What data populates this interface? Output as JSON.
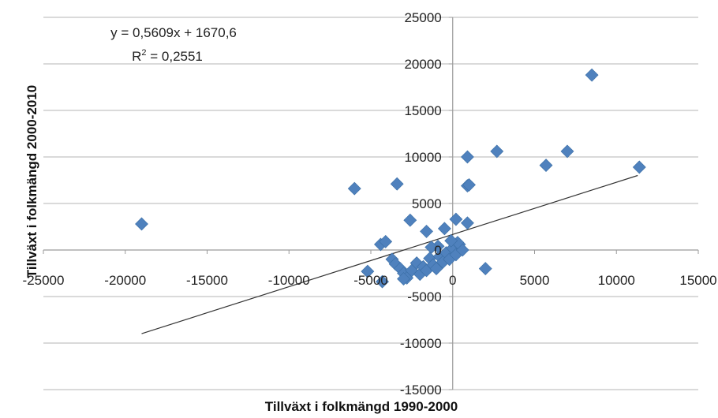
{
  "chart_data": {
    "type": "scatter",
    "title": "",
    "xlabel": "Tillväxt i folkmängd 1990-2000",
    "ylabel": "Tillväxt i folkmängd 2000-2010",
    "xlim": [
      -25000,
      15000
    ],
    "ylim": [
      -15000,
      25000
    ],
    "x_ticks": [
      -25000,
      -20000,
      -15000,
      -10000,
      -5000,
      0,
      5000,
      10000,
      15000
    ],
    "y_ticks": [
      -15000,
      -10000,
      -5000,
      0,
      5000,
      10000,
      15000,
      20000,
      25000
    ],
    "x_tick_labels": [
      "-25000",
      "-20000",
      "-15000",
      "-10000",
      "-5000",
      "0",
      "5000",
      "10000",
      "15000"
    ],
    "y_tick_labels": [
      "-15000",
      "-10000",
      "-5000",
      "0",
      "5000",
      "10000",
      "15000",
      "20000",
      "25000"
    ],
    "grid": true,
    "marker_color": "#4f81bd",
    "trendline": {
      "slope": 0.5609,
      "intercept": 1670.6,
      "x_range": [
        -19000,
        11300
      ]
    },
    "annotations": {
      "equation": "y = 0,5609x + 1670,6",
      "r2_prefix": "R",
      "r2_sup": "2",
      "r2_suffix": " = 0,2551"
    },
    "points": [
      {
        "x": -19000,
        "y": 2800
      },
      {
        "x": -6000,
        "y": 6600
      },
      {
        "x": -3400,
        "y": 7100
      },
      {
        "x": 8500,
        "y": 18800
      },
      {
        "x": 2700,
        "y": 10600
      },
      {
        "x": 7000,
        "y": 10600
      },
      {
        "x": 5700,
        "y": 9100
      },
      {
        "x": 11400,
        "y": 8900
      },
      {
        "x": 900,
        "y": 10000
      },
      {
        "x": 900,
        "y": 6900
      },
      {
        "x": 1000,
        "y": 7000
      },
      {
        "x": -2600,
        "y": 3200
      },
      {
        "x": -1600,
        "y": 2000
      },
      {
        "x": -500,
        "y": 2300
      },
      {
        "x": 200,
        "y": 3300
      },
      {
        "x": 900,
        "y": 2900
      },
      {
        "x": -4400,
        "y": 600
      },
      {
        "x": -4100,
        "y": 900
      },
      {
        "x": -3700,
        "y": -1000
      },
      {
        "x": -3500,
        "y": -1500
      },
      {
        "x": -3200,
        "y": -2000
      },
      {
        "x": -3000,
        "y": -2500
      },
      {
        "x": -2800,
        "y": -3000
      },
      {
        "x": -2500,
        "y": -2200
      },
      {
        "x": -2200,
        "y": -1400
      },
      {
        "x": -2000,
        "y": -2600
      },
      {
        "x": -1800,
        "y": -1800
      },
      {
        "x": -1600,
        "y": -2200
      },
      {
        "x": -1400,
        "y": -900
      },
      {
        "x": -1200,
        "y": -1600
      },
      {
        "x": -1000,
        "y": -2000
      },
      {
        "x": -800,
        "y": -700
      },
      {
        "x": -600,
        "y": -1300
      },
      {
        "x": -400,
        "y": -300
      },
      {
        "x": -200,
        "y": -1000
      },
      {
        "x": 0,
        "y": 200
      },
      {
        "x": 200,
        "y": -500
      },
      {
        "x": 400,
        "y": 600
      },
      {
        "x": 600,
        "y": 0
      },
      {
        "x": -900,
        "y": 400
      },
      {
        "x": -1300,
        "y": 300
      },
      {
        "x": -5200,
        "y": -2300
      },
      {
        "x": -4300,
        "y": -3400
      },
      {
        "x": -3000,
        "y": -3100
      },
      {
        "x": 2000,
        "y": -2000
      },
      {
        "x": 300,
        "y": 800
      },
      {
        "x": -100,
        "y": 1000
      }
    ]
  }
}
